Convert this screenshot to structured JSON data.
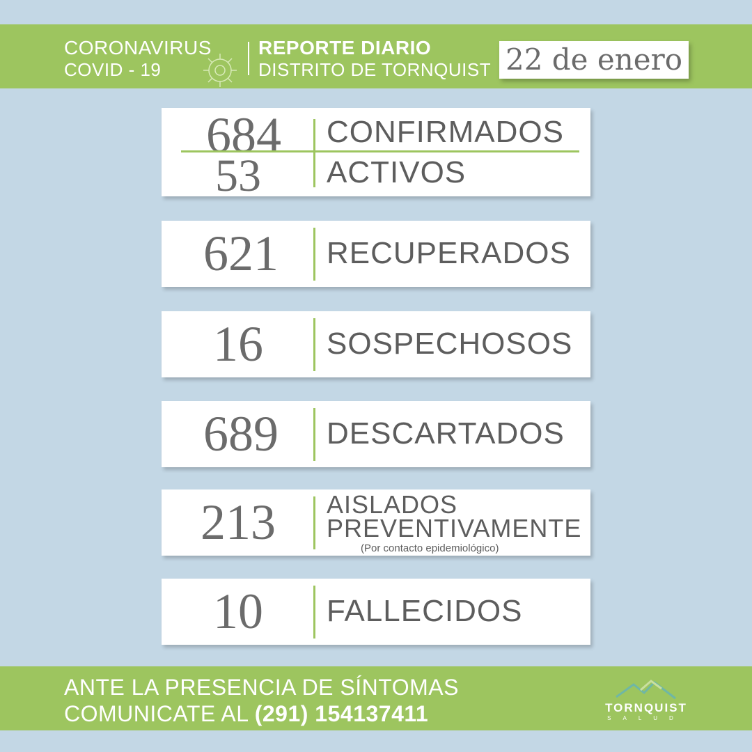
{
  "header": {
    "title1": "CORONAVIRUS",
    "title2": "COVID - 19",
    "report": "REPORTE DIARIO",
    "district": "DISTRITO DE TORNQUIST",
    "date": "22 de enero"
  },
  "stats": [
    {
      "value": "684",
      "label": "CONFIRMADOS"
    },
    {
      "value": "53",
      "label": "ACTIVOS"
    },
    {
      "value": "621",
      "label": "RECUPERADOS"
    },
    {
      "value": "16",
      "label": "SOSPECHOSOS"
    },
    {
      "value": "689",
      "label": "DESCARTADOS"
    },
    {
      "value": "213",
      "label1": "AISLADOS",
      "label2": "PREVENTIVAMENTE",
      "note": "(Por contacto epidemiológico)"
    },
    {
      "value": "10",
      "label": "FALLECIDOS"
    }
  ],
  "footer": {
    "line1": "ANTE LA PRESENCIA DE SÍNTOMAS",
    "line2": "COMUNICATE AL ",
    "phone": "(291) 154137411",
    "logo_name": "TORNQUIST",
    "logo_sub": "SALUD"
  },
  "colors": {
    "green": "#9dc55f",
    "background": "#c3d7e5"
  }
}
